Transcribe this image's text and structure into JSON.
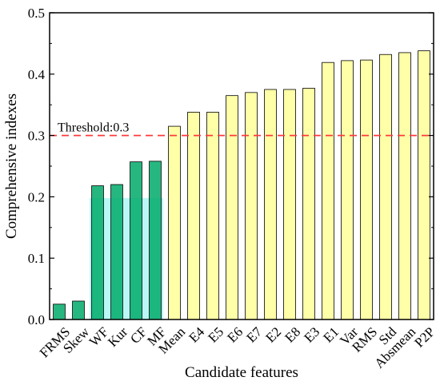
{
  "chart_data": {
    "type": "bar",
    "xlabel": "Candidate features",
    "ylabel": "Comprehensive indexes",
    "ylim": [
      0,
      0.5
    ],
    "yticks": [
      "0.0",
      "0.1",
      "0.2",
      "0.3",
      "0.4",
      "0.5"
    ],
    "categories": [
      "FRMS",
      "Skew",
      "WF",
      "Kur",
      "CF",
      "MF",
      "Mean",
      "E4",
      "E5",
      "E6",
      "E7",
      "E2",
      "E8",
      "E3",
      "E1",
      "Var",
      "RMS",
      "Std",
      "Absmean",
      "P2P"
    ],
    "values": [
      0.025,
      0.03,
      0.218,
      0.22,
      0.257,
      0.258,
      0.315,
      0.338,
      0.338,
      0.365,
      0.37,
      0.375,
      0.375,
      0.377,
      0.419,
      0.422,
      0.423,
      0.432,
      0.435,
      0.438
    ],
    "threshold": {
      "value": 0.3,
      "label": "Threshold:0.3",
      "color": "#ff3b3b"
    },
    "colors": {
      "below_threshold": "#00aa6a",
      "above_threshold": "#ffffa8",
      "highlight_box": "#7ff3ee",
      "bar_stroke": "#000000"
    },
    "grid": false,
    "legend": "none"
  }
}
